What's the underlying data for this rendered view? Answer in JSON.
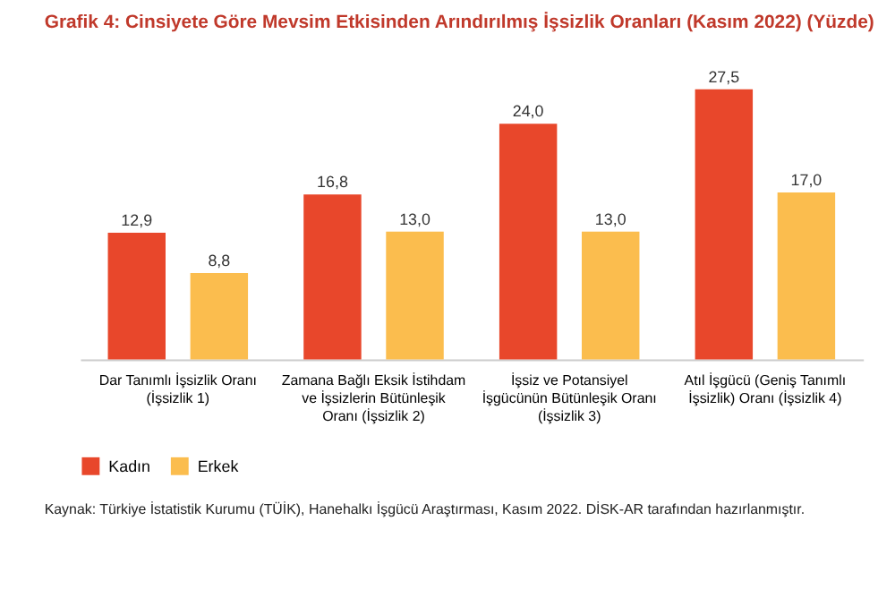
{
  "chart_data": {
    "type": "bar",
    "title": "Grafik 4: Cinsiyete Göre Mevsim Etkisinden Arındırılmış İşsizlik Oranları (Kasım 2022) (Yüzde)",
    "categories": [
      "Dar Tanımlı İşsizlik Oranı (İşsizlik 1)",
      "Zamana Bağlı Eksik İstihdam ve İşsizlerin Bütünleşik Oranı (İşsizlik 2)",
      "İşsiz ve Potansiyel İşgücünün Bütünleşik Oranı (İşsizlik 3)",
      "Atıl İşgücü (Geniş Tanımlı İşsizlik) Oranı (İşsizlik 4)"
    ],
    "series": [
      {
        "name": "Kadın",
        "color": "#e8472b",
        "values": [
          12.9,
          16.8,
          24.0,
          27.5
        ],
        "value_labels": [
          "12,9",
          "16,8",
          "24,0",
          "27,5"
        ]
      },
      {
        "name": "Erkek",
        "color": "#fbbd4e",
        "values": [
          8.8,
          13.0,
          13.0,
          17.0
        ],
        "value_labels": [
          "8,8",
          "13,0",
          "13,0",
          "17,0"
        ]
      }
    ],
    "annotations": [
      "Kaynak: Türkiye İstatistik Kurumu (TÜİK), Hanehalkı İşgücü Araştırması, Kasım 2022. DİSK-AR tarafından hazırlanmıştır."
    ],
    "legend": "bottom",
    "grid": false
  }
}
